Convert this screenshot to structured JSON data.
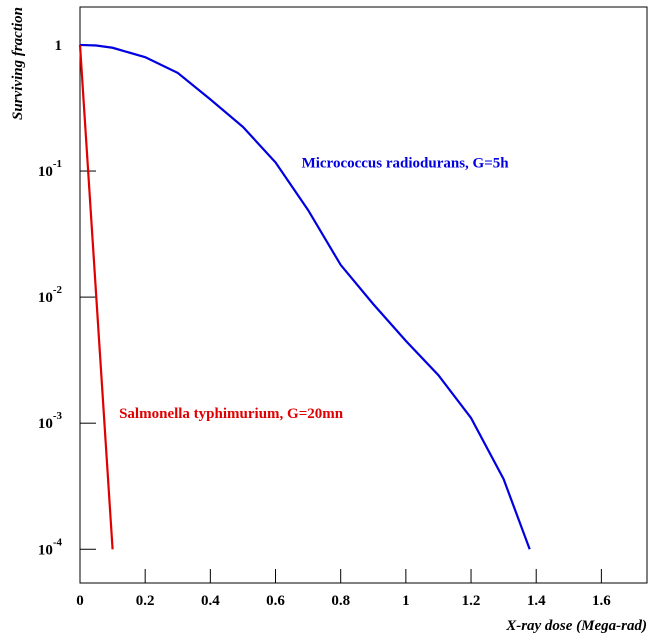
{
  "chart_data": {
    "type": "line",
    "x_label": "X-ray dose (Mega-rad)",
    "y_label": "Surviving fraction",
    "log_y": true,
    "xlim": [
      0,
      1.74
    ],
    "ylim": [
      5.4e-05,
      2.0
    ],
    "xticks": [
      0,
      0.2,
      0.4,
      0.6,
      0.8,
      1,
      1.2,
      1.4,
      1.6
    ],
    "yticks": [
      1,
      {
        "value": 0.1,
        "label": "10-1"
      },
      {
        "value": 0.01,
        "label": "10-2"
      },
      {
        "value": 0.001,
        "label": "10-3"
      },
      {
        "value": 0.0001,
        "label": "10-4"
      }
    ],
    "series": [
      {
        "color": "#0000e0",
        "x": [
          0,
          0.05,
          0.1,
          0.2,
          0.3,
          0.4,
          0.5,
          0.6,
          0.7,
          0.8,
          0.9,
          1.0,
          1.1,
          1.2,
          1.3,
          1.38
        ],
        "values": [
          1,
          0.99,
          0.95,
          0.8,
          0.6,
          0.37,
          0.224,
          0.117,
          0.049,
          0.018,
          0.0088,
          0.0045,
          0.0024,
          0.0011,
          0.00036,
          0.0001
        ]
      },
      {
        "color": "#e00000",
        "x": [
          0,
          0.1
        ],
        "values": [
          1,
          0.0001
        ]
      }
    ],
    "annotations": [
      {
        "text": "Micrococcus radiodurans, G=5h",
        "x": 0.68,
        "y": 0.107,
        "color": "#0000e0"
      },
      {
        "text": "Salmonella typhimurium, G=20mn",
        "x": 0.12,
        "y": 0.0011,
        "color": "#e00000"
      }
    ]
  }
}
